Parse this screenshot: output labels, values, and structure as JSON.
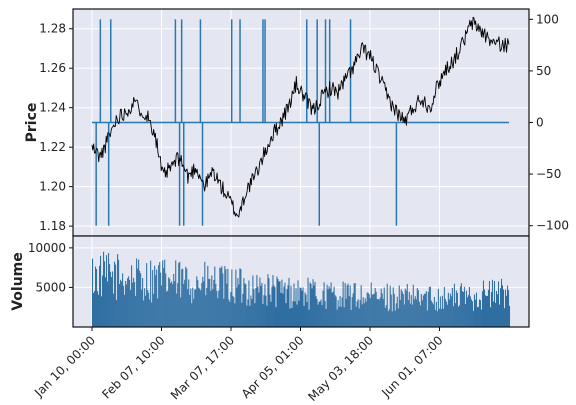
{
  "chart_data": [
    {
      "type": "line",
      "panel": "price",
      "ylabel": "Price",
      "ylim": [
        1.175,
        1.29
      ],
      "yticks": [
        "1.18",
        "1.20",
        "1.22",
        "1.24",
        "1.26",
        "1.28"
      ],
      "series": [
        {
          "x": [
            0,
            0.02,
            0.04,
            0.06,
            0.08,
            0.1,
            0.13,
            0.15,
            0.17,
            0.19,
            0.21,
            0.23,
            0.25,
            0.27,
            0.29,
            0.31,
            0.33,
            0.35,
            0.37,
            0.39,
            0.41,
            0.43,
            0.45,
            0.47,
            0.49,
            0.51,
            0.53,
            0.55,
            0.57,
            0.59,
            0.61,
            0.63,
            0.65,
            0.67,
            0.69,
            0.71,
            0.73,
            0.75,
            0.77,
            0.79,
            0.81,
            0.83,
            0.85,
            0.87,
            0.89,
            0.91,
            0.93,
            0.95,
            0.97,
            1.0
          ],
          "values": [
            1.22,
            1.215,
            1.225,
            1.235,
            1.238,
            1.242,
            1.237,
            1.228,
            1.205,
            1.21,
            1.215,
            1.205,
            1.21,
            1.2,
            1.208,
            1.2,
            1.193,
            1.185,
            1.198,
            1.205,
            1.215,
            1.225,
            1.232,
            1.24,
            1.252,
            1.245,
            1.238,
            1.245,
            1.25,
            1.248,
            1.255,
            1.262,
            1.27,
            1.265,
            1.255,
            1.245,
            1.238,
            1.233,
            1.24,
            1.245,
            1.24,
            1.252,
            1.26,
            1.265,
            1.273,
            1.283,
            1.28,
            1.275,
            1.272,
            1.272
          ]
        }
      ]
    },
    {
      "type": "bar",
      "panel": "signal",
      "ylim": [
        -110,
        110
      ],
      "yticks": [
        "100",
        "50",
        "0",
        "−50",
        "−100"
      ],
      "baseline": 0,
      "series": [
        {
          "x": [
            0.02,
            0.045,
            0.2,
            0.215,
            0.26,
            0.335,
            0.355,
            0.41,
            0.415,
            0.515,
            0.54,
            0.56,
            0.57,
            0.62
          ],
          "values": [
            100,
            100,
            100,
            100,
            100,
            100,
            100,
            100,
            100,
            100,
            100,
            100,
            100,
            100
          ]
        },
        {
          "x": [
            0.01,
            0.04,
            0.21,
            0.22,
            0.265,
            0.545,
            0.73
          ],
          "values": [
            -100,
            -100,
            -100,
            -100,
            -100,
            -100,
            -100
          ]
        }
      ]
    },
    {
      "type": "bar",
      "panel": "volume",
      "ylabel": "Volume",
      "ylim": [
        0,
        11500
      ],
      "yticks": [
        "5000",
        "10000"
      ],
      "series": [
        {
          "x": [
            0,
            0.04,
            0.08,
            0.12,
            0.16,
            0.2,
            0.24,
            0.28,
            0.32,
            0.36,
            0.4,
            0.44,
            0.48,
            0.52,
            0.56,
            0.6,
            0.64,
            0.68,
            0.72,
            0.76,
            0.8,
            0.84,
            0.88,
            0.92,
            0.96,
            1.0
          ],
          "values": [
            7400,
            7300,
            7200,
            6900,
            6800,
            6600,
            6500,
            6300,
            6000,
            5800,
            5500,
            5200,
            5000,
            4800,
            4700,
            4500,
            4400,
            4300,
            4300,
            4200,
            4200,
            4300,
            4400,
            4600,
            4800,
            4900
          ]
        }
      ]
    },
    {
      "type": "axis",
      "panel": "x",
      "ticks": [
        {
          "label": "Jan 10, 00:00",
          "x": 0.0
        },
        {
          "label": "Feb 07, 10:00",
          "x": 0.1667
        },
        {
          "label": "Mar 07, 17:00",
          "x": 0.3333
        },
        {
          "label": "Apr 05, 01:00",
          "x": 0.5
        },
        {
          "label": "May 03, 18:00",
          "x": 0.6667
        },
        {
          "label": "Jun 01, 07:00",
          "x": 0.8333
        }
      ]
    }
  ],
  "colors": {
    "panel_bg": "#e4e7f1",
    "grid": "#ffffff",
    "price_line": "#000000",
    "signal": "#2878b4",
    "volume": "#2f6ea1",
    "frame": "#111111"
  }
}
